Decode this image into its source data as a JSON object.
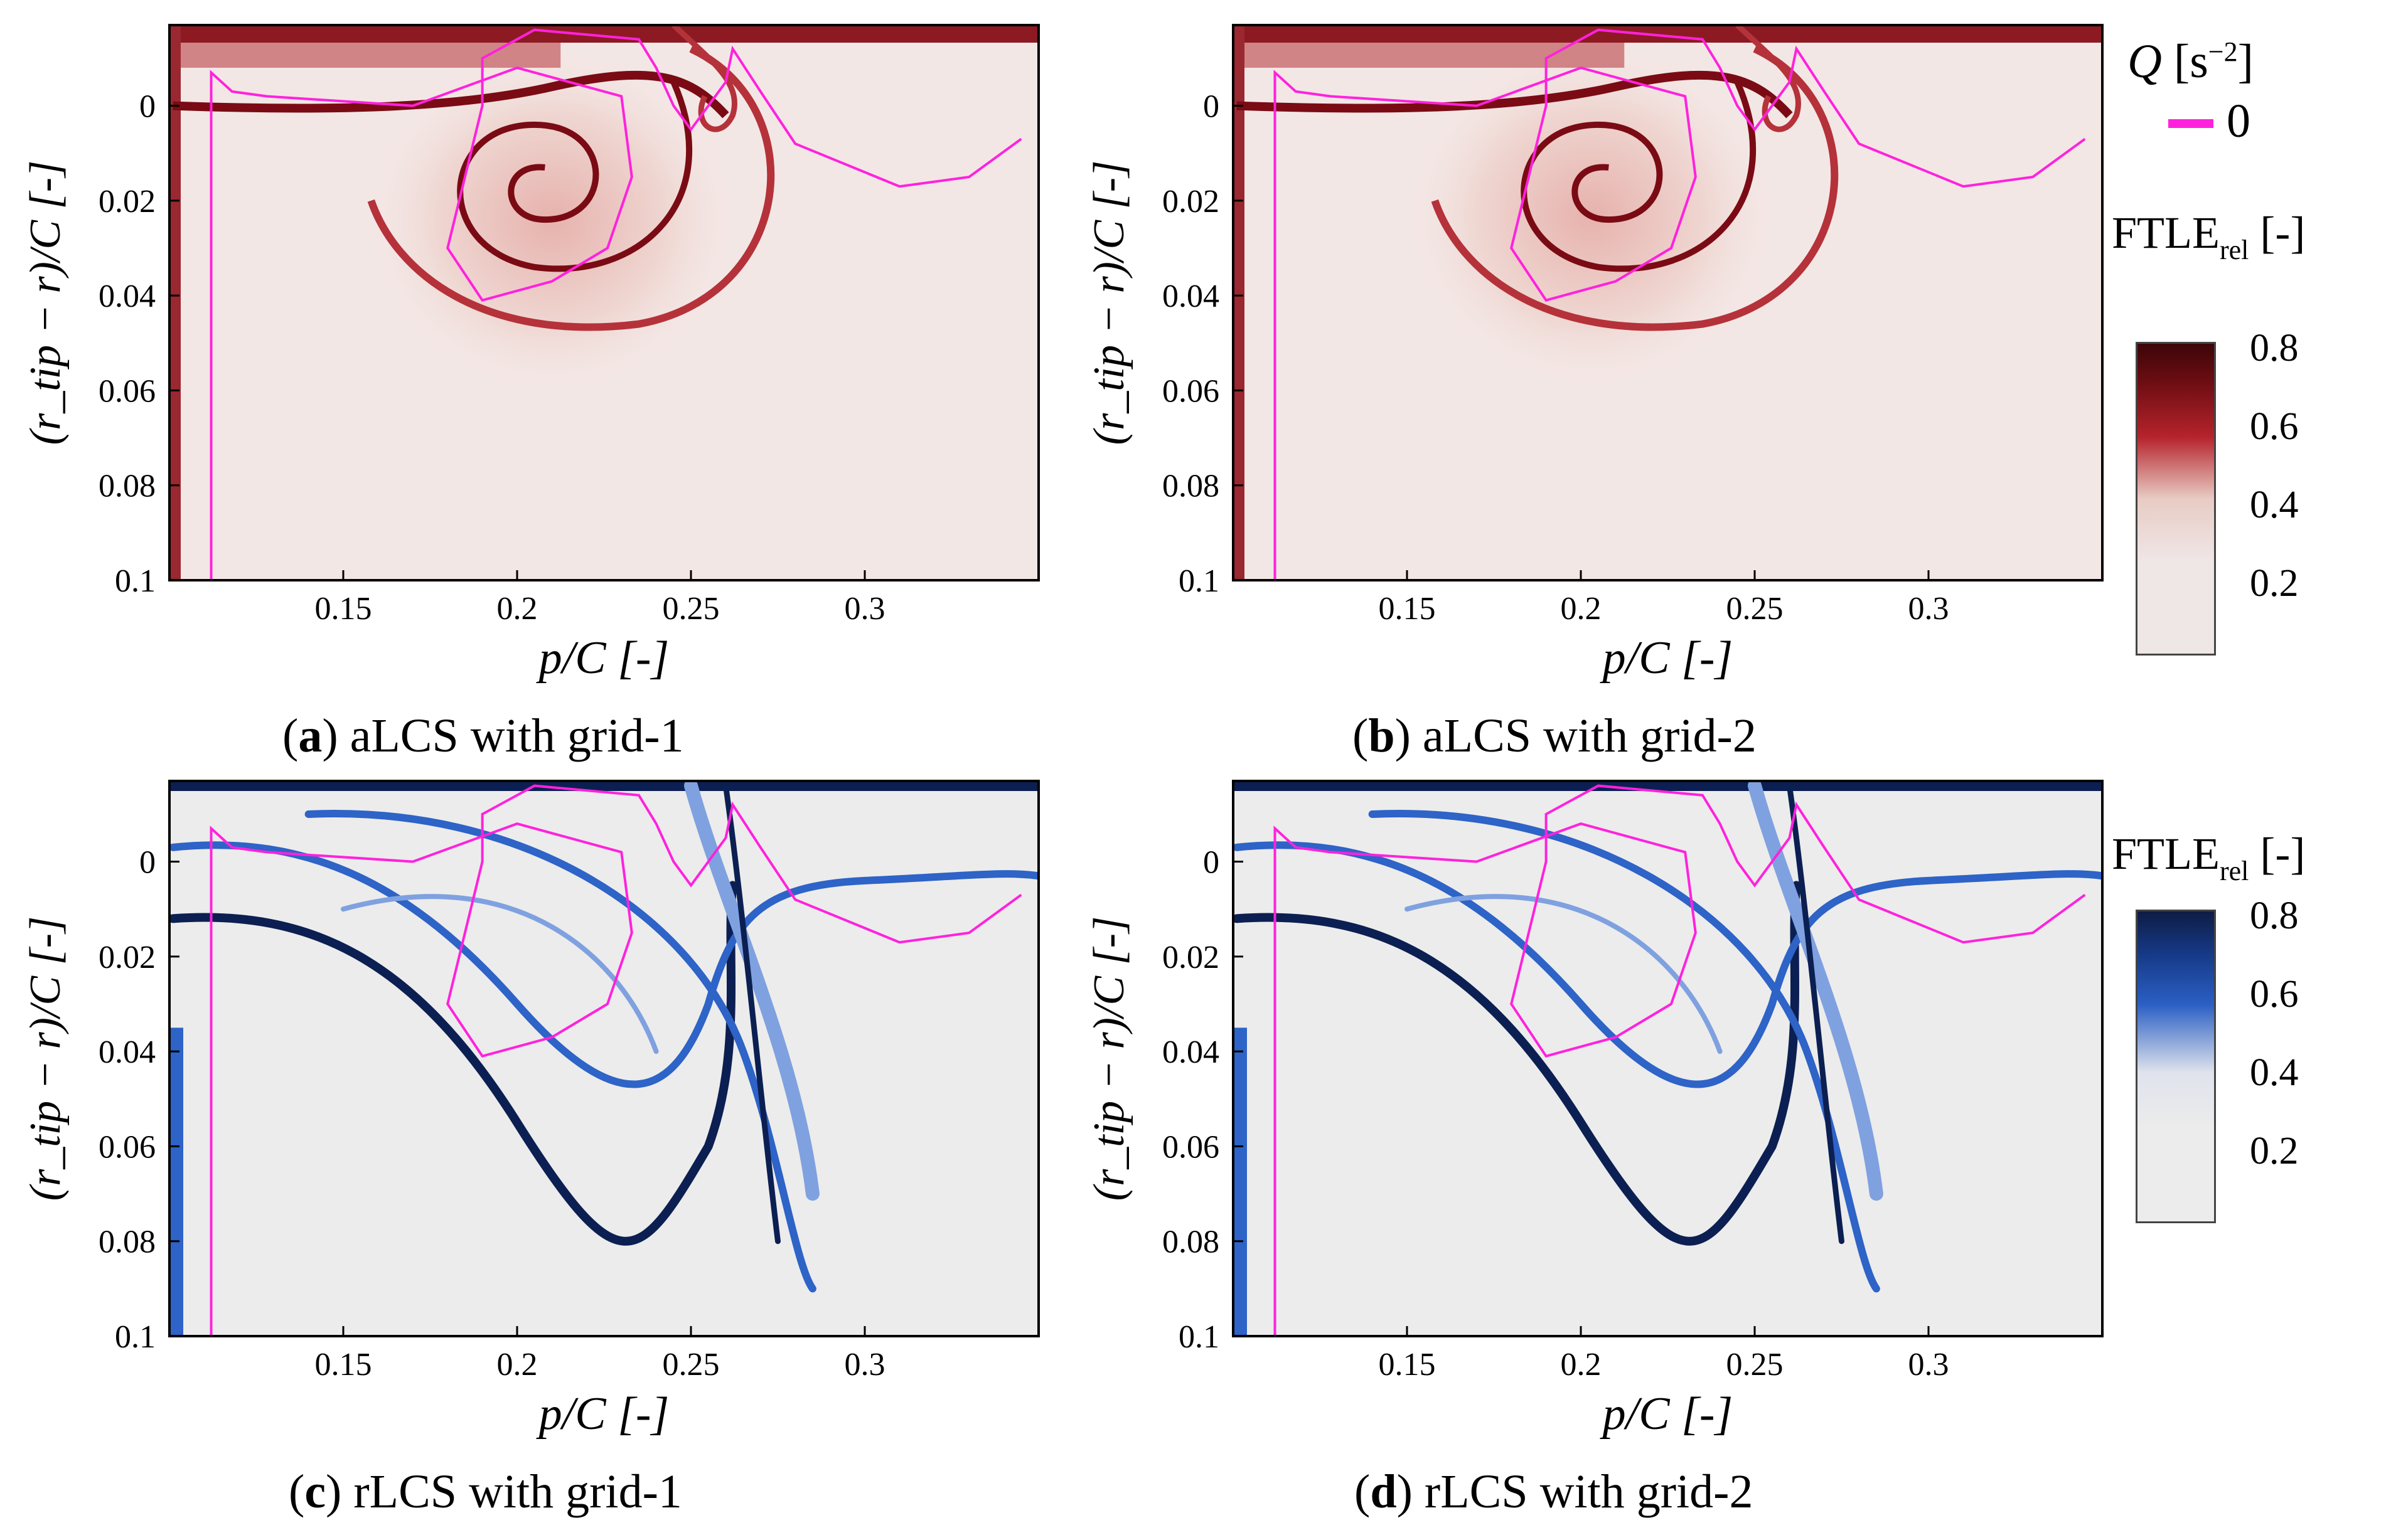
{
  "chart_data": [
    {
      "type": "heatmap",
      "panel_label": "a",
      "caption": "aLCS with grid-1",
      "xlabel": "p/C [-]",
      "ylabel": "(r_tip − r)/C [-]",
      "xlim": [
        0.1,
        0.35
      ],
      "ylim": [
        0.1,
        -0.017
      ],
      "xticks": [
        "0.15",
        "0.2",
        "0.25",
        "0.3"
      ],
      "yticks": [
        "0",
        "0.02",
        "0.04",
        "0.06",
        "0.08",
        "0.1"
      ],
      "colormap": "red",
      "vortex_center": [
        0.21,
        0.016
      ],
      "q_zero_contour": [
        [
          0.112,
          0.1
        ],
        [
          0.112,
          -0.007
        ],
        [
          0.118,
          -0.003
        ],
        [
          0.128,
          -0.002
        ],
        [
          0.17,
          0.0
        ],
        [
          0.2,
          -0.008
        ],
        [
          0.23,
          -0.002
        ],
        [
          0.233,
          0.015
        ],
        [
          0.226,
          0.03
        ],
        [
          0.21,
          0.037
        ],
        [
          0.19,
          0.041
        ],
        [
          0.18,
          0.03
        ],
        [
          0.185,
          0.015
        ],
        [
          0.19,
          0.0
        ],
        [
          0.19,
          -0.01
        ],
        [
          0.205,
          -0.016
        ],
        [
          0.235,
          -0.014
        ],
        [
          0.24,
          -0.008
        ],
        [
          0.245,
          0.0
        ],
        [
          0.25,
          0.005
        ],
        [
          0.26,
          -0.005
        ],
        [
          0.262,
          -0.012
        ],
        [
          0.27,
          -0.003
        ],
        [
          0.28,
          0.008
        ],
        [
          0.31,
          0.017
        ],
        [
          0.33,
          0.015
        ],
        [
          0.345,
          0.007
        ]
      ]
    },
    {
      "type": "heatmap",
      "panel_label": "b",
      "caption": "aLCS with grid-2",
      "xlabel": "p/C [-]",
      "ylabel": "(r_tip − r)/C [-]",
      "xlim": [
        0.1,
        0.35
      ],
      "ylim": [
        0.1,
        -0.017
      ],
      "xticks": [
        "0.15",
        "0.2",
        "0.25",
        "0.3"
      ],
      "yticks": [
        "0",
        "0.02",
        "0.04",
        "0.06",
        "0.08",
        "0.1"
      ],
      "colormap": "red",
      "vortex_center": [
        0.203,
        0.015
      ],
      "q_zero_contour": [
        [
          0.112,
          0.1
        ],
        [
          0.112,
          -0.007
        ],
        [
          0.118,
          -0.003
        ],
        [
          0.128,
          -0.002
        ],
        [
          0.17,
          0.0
        ],
        [
          0.2,
          -0.008
        ],
        [
          0.23,
          -0.002
        ],
        [
          0.233,
          0.015
        ],
        [
          0.226,
          0.03
        ],
        [
          0.21,
          0.037
        ],
        [
          0.19,
          0.041
        ],
        [
          0.18,
          0.03
        ],
        [
          0.185,
          0.015
        ],
        [
          0.19,
          0.0
        ],
        [
          0.19,
          -0.01
        ],
        [
          0.205,
          -0.016
        ],
        [
          0.235,
          -0.014
        ],
        [
          0.24,
          -0.008
        ],
        [
          0.245,
          0.0
        ],
        [
          0.25,
          0.005
        ],
        [
          0.26,
          -0.005
        ],
        [
          0.262,
          -0.012
        ],
        [
          0.27,
          -0.003
        ],
        [
          0.28,
          0.008
        ],
        [
          0.31,
          0.017
        ],
        [
          0.33,
          0.015
        ],
        [
          0.345,
          0.007
        ]
      ]
    },
    {
      "type": "heatmap",
      "panel_label": "c",
      "caption": "rLCS with grid-1",
      "xlabel": "p/C [-]",
      "ylabel": "(r_tip − r)/C [-]",
      "xlim": [
        0.1,
        0.35
      ],
      "ylim": [
        0.1,
        -0.017
      ],
      "xticks": [
        "0.15",
        "0.2",
        "0.25",
        "0.3"
      ],
      "yticks": [
        "0",
        "0.02",
        "0.04",
        "0.06",
        "0.08",
        "0.1"
      ],
      "colormap": "blue",
      "q_zero_contour": [
        [
          0.112,
          0.1
        ],
        [
          0.112,
          -0.007
        ],
        [
          0.118,
          -0.003
        ],
        [
          0.128,
          -0.002
        ],
        [
          0.17,
          0.0
        ],
        [
          0.2,
          -0.008
        ],
        [
          0.23,
          -0.002
        ],
        [
          0.233,
          0.015
        ],
        [
          0.226,
          0.03
        ],
        [
          0.21,
          0.037
        ],
        [
          0.19,
          0.041
        ],
        [
          0.18,
          0.03
        ],
        [
          0.185,
          0.015
        ],
        [
          0.19,
          0.0
        ],
        [
          0.19,
          -0.01
        ],
        [
          0.205,
          -0.016
        ],
        [
          0.235,
          -0.014
        ],
        [
          0.24,
          -0.008
        ],
        [
          0.245,
          0.0
        ],
        [
          0.25,
          0.005
        ],
        [
          0.26,
          -0.005
        ],
        [
          0.262,
          -0.012
        ],
        [
          0.27,
          -0.003
        ],
        [
          0.28,
          0.008
        ],
        [
          0.31,
          0.017
        ],
        [
          0.33,
          0.015
        ],
        [
          0.345,
          0.007
        ]
      ]
    },
    {
      "type": "heatmap",
      "panel_label": "d",
      "caption": "rLCS with grid-2",
      "xlabel": "p/C [-]",
      "ylabel": "(r_tip − r)/C [-]",
      "xlim": [
        0.1,
        0.35
      ],
      "ylim": [
        0.1,
        -0.017
      ],
      "xticks": [
        "0.15",
        "0.2",
        "0.25",
        "0.3"
      ],
      "yticks": [
        "0",
        "0.02",
        "0.04",
        "0.06",
        "0.08",
        "0.1"
      ],
      "colormap": "blue",
      "q_zero_contour": [
        [
          0.112,
          0.1
        ],
        [
          0.112,
          -0.007
        ],
        [
          0.118,
          -0.003
        ],
        [
          0.128,
          -0.002
        ],
        [
          0.17,
          0.0
        ],
        [
          0.2,
          -0.008
        ],
        [
          0.23,
          -0.002
        ],
        [
          0.233,
          0.015
        ],
        [
          0.226,
          0.03
        ],
        [
          0.21,
          0.037
        ],
        [
          0.19,
          0.041
        ],
        [
          0.18,
          0.03
        ],
        [
          0.185,
          0.015
        ],
        [
          0.19,
          0.0
        ],
        [
          0.19,
          -0.01
        ],
        [
          0.205,
          -0.016
        ],
        [
          0.235,
          -0.014
        ],
        [
          0.24,
          -0.008
        ],
        [
          0.245,
          0.0
        ],
        [
          0.25,
          0.005
        ],
        [
          0.26,
          -0.005
        ],
        [
          0.262,
          -0.012
        ],
        [
          0.27,
          -0.003
        ],
        [
          0.28,
          0.008
        ],
        [
          0.31,
          0.017
        ],
        [
          0.33,
          0.015
        ],
        [
          0.345,
          0.007
        ]
      ]
    }
  ],
  "legend": {
    "q_title": "Q",
    "q_unit_base": "[s",
    "q_unit_exp": "−2",
    "q_unit_close": "]",
    "q_entry": "0",
    "q_color": "#ff22dd"
  },
  "colorbars": [
    {
      "title_main": "FTLE",
      "title_sub": "rel",
      "title_unit": "[-]",
      "ticks": [
        "0.8",
        "0.6",
        "0.4",
        "0.2"
      ],
      "range": [
        0,
        0.8
      ],
      "colors": [
        "#efe6e6",
        "#efe6e6",
        "#e8cbc4",
        "#b5232b",
        "#3d0508"
      ]
    },
    {
      "title_main": "FTLE",
      "title_sub": "rel",
      "title_unit": "[-]",
      "ticks": [
        "0.8",
        "0.6",
        "0.4",
        "0.2"
      ],
      "range": [
        0,
        0.8
      ],
      "colors": [
        "#ececec",
        "#ececec",
        "#dfe3ec",
        "#2b5fc4",
        "#0e1c44"
      ]
    }
  ]
}
